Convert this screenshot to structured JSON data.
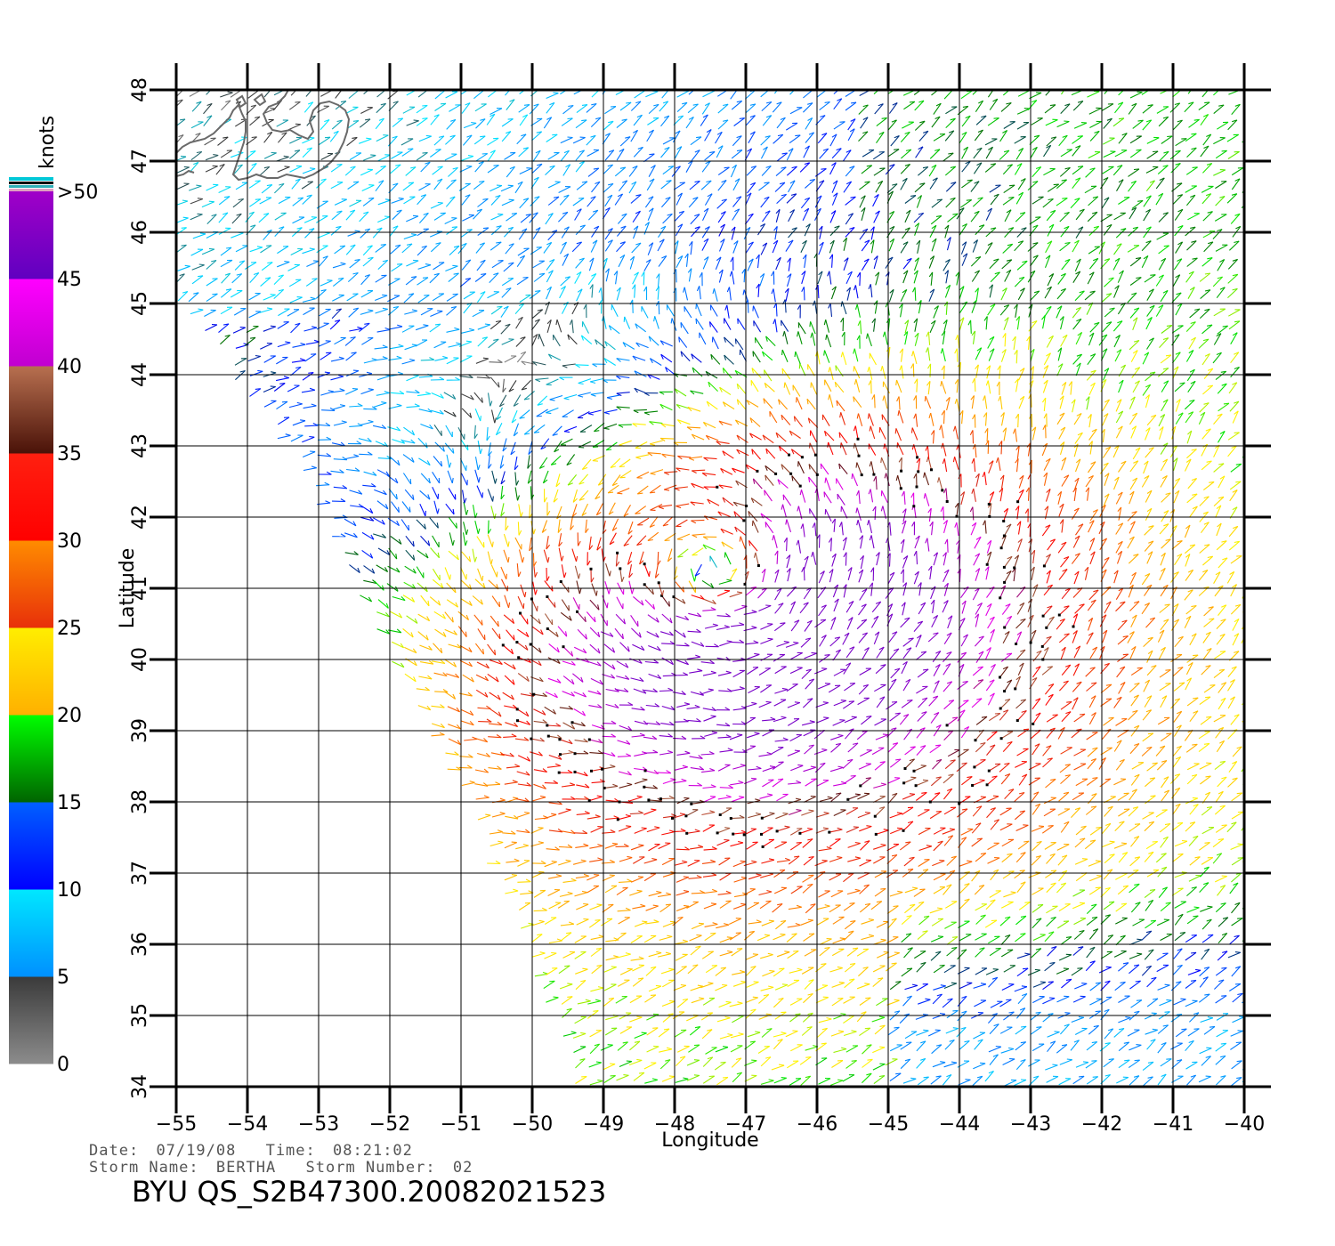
{
  "colorbar": {
    "unit": "knots",
    "bands": [
      {
        "from": 0,
        "to": 5,
        "top": "#3a3a3a",
        "bottom": "#8c8c8c"
      },
      {
        "from": 5,
        "to": 10,
        "top": "#00e8ff",
        "bottom": "#0090ff"
      },
      {
        "from": 10,
        "to": 15,
        "top": "#0060ff",
        "bottom": "#0000ff"
      },
      {
        "from": 15,
        "to": 20,
        "top": "#00ff00",
        "bottom": "#006400"
      },
      {
        "from": 20,
        "to": 25,
        "top": "#ffee00",
        "bottom": "#ffb000"
      },
      {
        "from": 25,
        "to": 30,
        "top": "#ff8c00",
        "bottom": "#e8300a"
      },
      {
        "from": 30,
        "to": 35,
        "top": "#ff2010",
        "bottom": "#ff0000"
      },
      {
        "from": 35,
        "to": 40,
        "top": "#b87050",
        "bottom": "#4a1208"
      },
      {
        "from": 40,
        "to": 45,
        "top": "#ff00ff",
        "bottom": "#c000d0"
      },
      {
        "from": 45,
        "to": 50,
        "top": "#a000c8",
        "bottom": "#6000c0"
      }
    ],
    "labels": [
      "0",
      "5",
      "10",
      "15",
      "20",
      "25",
      "30",
      "35",
      "40",
      "45",
      ">50"
    ]
  },
  "map": {
    "lon_range": [
      -55,
      -40
    ],
    "lat_range": [
      34,
      48
    ],
    "lon_ticks": [
      "−55",
      "−54",
      "−53",
      "−52",
      "−51",
      "−50",
      "−49",
      "−48",
      "−47",
      "−46",
      "−45",
      "−44",
      "−43",
      "−42",
      "−41",
      "−40"
    ],
    "lat_ticks": [
      "34",
      "35",
      "36",
      "37",
      "38",
      "39",
      "40",
      "41",
      "42",
      "43",
      "44",
      "45",
      "46",
      "47",
      "48"
    ],
    "xlabel": "Longitude",
    "ylabel": "Latitude",
    "grid": true,
    "storm_center": {
      "lon": -47.3,
      "lat": 41.1
    }
  },
  "info": {
    "date_label": "Date:",
    "date": "07/19/08",
    "time_label": "Time:",
    "time": "08:21:02",
    "storm_name_label": "Storm Name:",
    "storm_name": "BERTHA",
    "storm_number_label": "Storm Number:",
    "storm_number": "02",
    "title": "BYU QS_S2B47300.20082021523"
  }
}
